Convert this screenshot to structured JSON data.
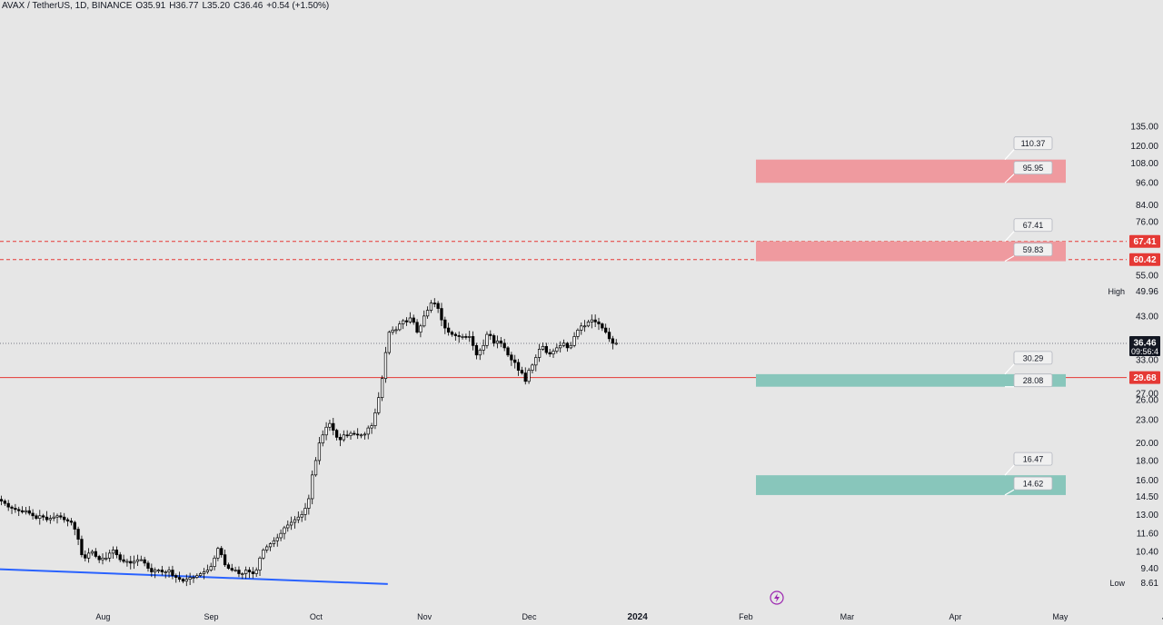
{
  "legend": {
    "symbol": "AVAX / TetherUS, 1D, BINANCE",
    "open": "O35.91",
    "high": "H36.77",
    "low": "L35.20",
    "close": "C36.46",
    "change": "+0.54 (+1.50%)"
  },
  "price_axis": {
    "ticks": [
      "135.00",
      "120.00",
      "108.00",
      "96.00",
      "84.00",
      "76.00",
      "55.00",
      "43.00",
      "33.00",
      "27.00",
      "26.00",
      "23.00",
      "20.00",
      "18.00",
      "16.00",
      "14.50",
      "13.00",
      "11.60",
      "10.40",
      "9.40"
    ],
    "current_price": "36.46",
    "countdown": "09:56:4",
    "high_label": "High",
    "high_value": "49.96",
    "low_label": "Low",
    "low_value": "8.61",
    "tags": [
      {
        "value": "67.41",
        "color": "#e53935"
      },
      {
        "value": "60.42",
        "color": "#e53935"
      },
      {
        "value": "29.68",
        "color": "#e53935"
      }
    ]
  },
  "time_axis": {
    "labels": [
      "Aug",
      "Sep",
      "Oct",
      "Nov",
      "Dec",
      "2024",
      "Feb",
      "Mar",
      "Apr",
      "May",
      "Jun"
    ]
  },
  "chart_data": {
    "type": "candlestick",
    "scale": "log",
    "ylim": [
      8.0,
      140.0
    ],
    "x_start": "2023-07-15",
    "daily_closes": [
      14.1,
      13.9,
      13.6,
      13.5,
      13.4,
      13.3,
      13.2,
      13.3,
      13.1,
      12.9,
      12.7,
      12.9,
      12.8,
      12.6,
      12.7,
      12.8,
      12.9,
      12.8,
      12.6,
      12.5,
      12.4,
      11.9,
      11.2,
      10.2,
      10.0,
      10.3,
      10.4,
      10.1,
      9.9,
      10.0,
      10.0,
      10.3,
      10.5,
      10.2,
      9.9,
      9.8,
      9.8,
      9.7,
      9.8,
      9.9,
      9.9,
      9.7,
      9.4,
      9.2,
      9.3,
      9.3,
      9.2,
      9.2,
      9.3,
      9.0,
      8.9,
      8.8,
      8.7,
      8.8,
      8.9,
      8.9,
      9.0,
      9.1,
      9.2,
      9.3,
      9.5,
      10.0,
      10.6,
      10.2,
      9.6,
      9.4,
      9.3,
      9.3,
      9.1,
      9.1,
      9.3,
      9.2,
      9.1,
      9.3,
      10.0,
      10.5,
      10.7,
      10.9,
      11.1,
      11.3,
      11.6,
      12.0,
      12.2,
      12.4,
      12.6,
      12.8,
      13.0,
      13.5,
      14.3,
      16.5,
      18.0,
      20.0,
      21.0,
      22.0,
      22.5,
      21.6,
      20.7,
      20.4,
      21.0,
      20.9,
      21.2,
      21.1,
      21.0,
      21.0,
      21.1,
      21.9,
      22.2,
      24.0,
      26.3,
      29.5,
      34.5,
      39.0,
      39.5,
      39.6,
      41.0,
      41.8,
      41.5,
      42.5,
      41.4,
      39.0,
      40.5,
      43.0,
      44.5,
      46.5,
      46.4,
      45.0,
      42.0,
      40.0,
      39.0,
      38.5,
      38.2,
      38.0,
      38.0,
      37.8,
      38.0,
      36.0,
      34.0,
      35.0,
      36.0,
      38.5,
      38.2,
      36.5,
      37.0,
      36.5,
      35.5,
      34.0,
      33.0,
      32.5,
      31.0,
      30.5,
      29.0,
      31.0,
      32.0,
      33.5,
      35.2,
      35.8,
      34.5,
      34.2,
      34.8,
      35.5,
      36.0,
      36.5,
      35.5,
      36.0,
      38.0,
      39.5,
      40.5,
      40.5,
      41.5,
      42.0,
      41.5,
      41.0,
      40.0,
      39.0,
      37.5,
      36.5,
      36.5
    ],
    "zones": [
      {
        "top": 110.37,
        "bottom": 95.95,
        "color": "#ef9a9f",
        "top_label": "110.37",
        "bottom_label": "95.95"
      },
      {
        "top": 67.41,
        "bottom": 59.83,
        "color": "#ef9a9f",
        "top_label": "67.41",
        "bottom_label": "59.83"
      },
      {
        "top": 30.29,
        "bottom": 28.08,
        "color": "#88c6bb",
        "top_label": "30.29",
        "bottom_label": "28.08"
      },
      {
        "top": 16.47,
        "bottom": 14.62,
        "color": "#88c6bb",
        "top_label": "16.47",
        "bottom_label": "14.62"
      }
    ],
    "horizontal_lines": [
      {
        "price": 67.41,
        "style": "dashed",
        "color": "#e53935"
      },
      {
        "price": 60.42,
        "style": "dashed",
        "color": "#e53935"
      },
      {
        "price": 29.68,
        "style": "solid",
        "color": "#e53935"
      },
      {
        "price": 36.46,
        "style": "dotted",
        "color": "#787b86"
      }
    ],
    "trendline": {
      "from": {
        "date": "2023-07-15",
        "price": 9.35
      },
      "to": {
        "date": "2023-11-03",
        "price": 8.55
      },
      "color": "#2962ff"
    }
  },
  "colors": {
    "background": "#e6e6e6",
    "candle": "#000000",
    "price_label_bg": "#131722"
  }
}
